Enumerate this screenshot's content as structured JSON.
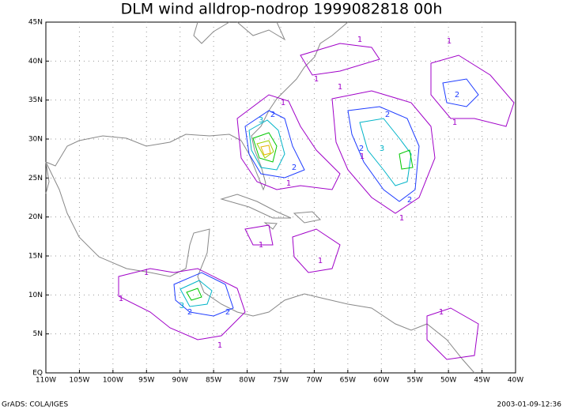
{
  "title": "DLM wind alldrop-nodrop 1999082818 00h",
  "lon_labels": [
    "110W",
    "105W",
    "100W",
    "95W",
    "90W",
    "85W",
    "80W",
    "75W",
    "70W",
    "65W",
    "60W",
    "55W",
    "50W",
    "45W",
    "40W"
  ],
  "lat_labels": [
    "EQ",
    "5N",
    "10N",
    "15N",
    "20N",
    "25N",
    "30N",
    "35N",
    "40N",
    "45N"
  ],
  "contour_labels": [
    "1",
    "1",
    "1",
    "1",
    "1",
    "2",
    "2",
    "3",
    "1",
    "2",
    "1",
    "2",
    "3",
    "2",
    "1",
    "1",
    "1",
    "1",
    "1",
    "2",
    "3",
    "2",
    "1",
    "1",
    "1",
    "2"
  ],
  "footer_left": "GrADS: COLA/IGES",
  "footer_right": "2003-01-09-12:36"
}
